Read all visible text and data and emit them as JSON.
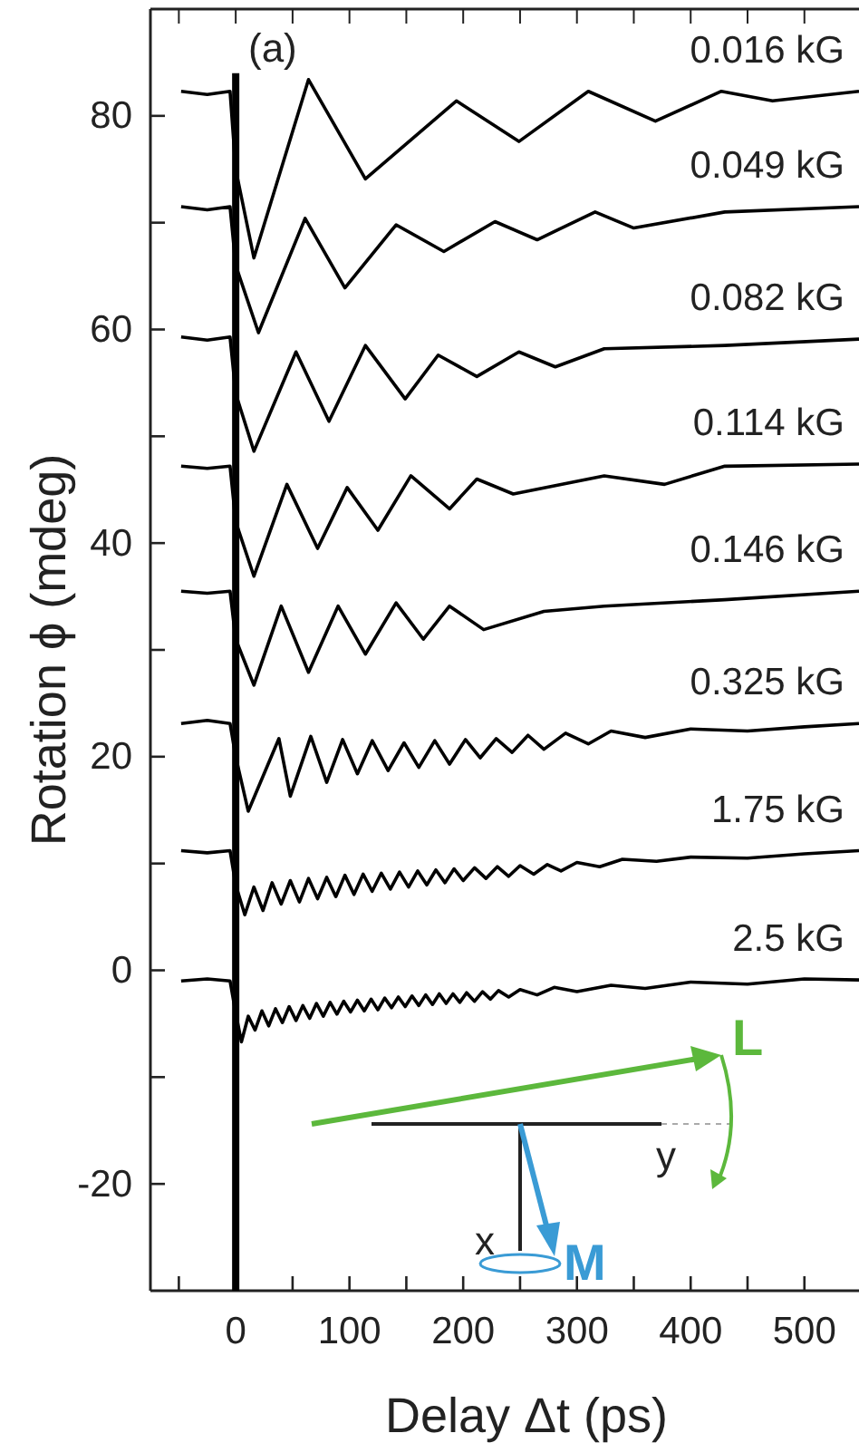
{
  "chart_data": {
    "type": "line",
    "xlabel": "Delay Δt (ps)",
    "ylabel": "Rotation ϕ (mdeg)",
    "xlim": [
      -75,
      548
    ],
    "ylim": [
      -30,
      90
    ],
    "xticks": [
      {
        "value": -50,
        "label": null
      },
      0,
      {
        "value": 50,
        "label": null
      },
      100,
      {
        "value": 150,
        "label": null
      },
      200,
      {
        "value": 250,
        "label": null
      },
      300,
      {
        "value": 350,
        "label": null
      },
      400,
      {
        "value": 450,
        "label": null
      },
      500
    ],
    "yticks": [
      -20,
      {
        "value": -10,
        "label": null
      },
      0,
      {
        "value": 10,
        "label": null
      },
      20,
      {
        "value": 30,
        "label": null
      },
      40,
      {
        "value": 50,
        "label": null
      },
      60,
      {
        "value": 70,
        "label": null
      },
      80
    ],
    "grid": false,
    "marker": "none",
    "line_style": "solid",
    "ref_lines": [
      {
        "axis": "x",
        "value": 0,
        "color": "#000000"
      }
    ],
    "annotations": [
      "(a)",
      "L",
      "y",
      "x",
      "M"
    ],
    "series": [
      {
        "name": "0.016 kG",
        "color": "#000000",
        "x": [
          -48,
          -25,
          -5,
          0,
          16,
          64,
          114,
          194,
          249,
          310,
          369,
          427,
          472,
          548
        ],
        "values": [
          82.3,
          82.0,
          82.3,
          75,
          66.7,
          83.4,
          74.1,
          81.4,
          77.6,
          82.3,
          79.5,
          82.3,
          81.4,
          82.3
        ]
      },
      {
        "name": "0.049 kG",
        "color": "#000000",
        "x": [
          -48,
          -25,
          -5,
          0,
          20,
          61,
          96,
          141,
          183,
          228,
          265,
          316,
          350,
          430,
          548
        ],
        "values": [
          71.5,
          71.2,
          71.5,
          66,
          59.7,
          70.4,
          63.9,
          69.8,
          67.3,
          70.1,
          68.4,
          71.0,
          69.5,
          71.0,
          71.5
        ]
      },
      {
        "name": "0.082 kG",
        "color": "#000000",
        "x": [
          -48,
          -25,
          -5,
          0,
          16,
          53,
          82,
          114,
          149,
          178,
          212,
          249,
          281,
          324,
          430,
          548
        ],
        "values": [
          59.3,
          59.0,
          59.3,
          54,
          48.6,
          57.9,
          51.4,
          58.5,
          53.5,
          57.6,
          55.6,
          57.9,
          56.5,
          58.2,
          58.5,
          59.1
        ]
      },
      {
        "name": "0.114 kG",
        "color": "#000000",
        "x": [
          -48,
          -25,
          -5,
          0,
          16,
          45,
          72,
          98,
          125,
          154,
          188,
          212,
          244,
          324,
          377,
          430,
          548
        ],
        "values": [
          47.2,
          47.0,
          47.2,
          42,
          36.9,
          45.5,
          39.5,
          45.2,
          41.2,
          46.3,
          43.2,
          46.0,
          44.6,
          46.3,
          45.5,
          47.2,
          47.4
        ]
      },
      {
        "name": "0.146 kG",
        "color": "#000000",
        "x": [
          -48,
          -25,
          -5,
          0,
          16,
          40,
          64,
          90,
          114,
          141,
          165,
          188,
          218,
          271,
          324,
          430,
          548
        ],
        "values": [
          35.5,
          35.3,
          35.5,
          31,
          26.7,
          34.1,
          27.9,
          34.1,
          29.6,
          34.4,
          31.0,
          34.1,
          31.9,
          33.6,
          34.1,
          34.7,
          35.5
        ]
      },
      {
        "name": "0.325 kG",
        "color": "#000000",
        "x": [
          -48,
          -25,
          -5,
          0,
          11,
          38,
          48,
          66,
          80,
          94,
          107,
          120,
          134,
          148,
          161,
          175,
          188,
          202,
          215,
          229,
          243,
          257,
          271,
          290,
          310,
          330,
          360,
          400,
          450,
          500,
          548
        ],
        "values": [
          23.1,
          23.4,
          23.1,
          20,
          14.9,
          21.7,
          16.3,
          21.9,
          17.6,
          21.6,
          18.4,
          21.5,
          18.7,
          21.3,
          19.0,
          21.5,
          19.3,
          21.6,
          19.9,
          21.7,
          20.4,
          22.0,
          20.7,
          22.2,
          21.2,
          22.4,
          21.8,
          22.6,
          22.4,
          22.8,
          23.1
        ]
      },
      {
        "name": "1.75 kG",
        "color": "#000000",
        "x": [
          -48,
          -25,
          -5,
          0,
          8,
          16,
          24,
          32,
          40,
          48,
          56,
          64,
          72,
          80,
          88,
          96,
          104,
          112,
          120,
          128,
          136,
          144,
          152,
          160,
          168,
          176,
          184,
          192,
          200,
          210,
          220,
          230,
          240,
          250,
          262,
          274,
          286,
          300,
          320,
          340,
          370,
          400,
          450,
          500,
          548
        ],
        "values": [
          11.2,
          11.0,
          11.2,
          8,
          5.2,
          7.8,
          5.6,
          8.2,
          6.2,
          8.4,
          6.4,
          8.6,
          6.7,
          8.7,
          6.9,
          8.9,
          7.1,
          9.0,
          7.4,
          9.1,
          7.6,
          9.2,
          7.8,
          9.3,
          8.0,
          9.4,
          8.2,
          9.5,
          8.4,
          9.6,
          8.6,
          9.7,
          8.8,
          9.8,
          9.0,
          9.9,
          9.3,
          10.1,
          9.7,
          10.4,
          10.2,
          10.6,
          10.5,
          10.9,
          11.2
        ]
      },
      {
        "name": "2.5 kG",
        "color": "#000000",
        "x": [
          -48,
          -25,
          -5,
          0,
          5,
          11,
          17,
          23,
          29,
          35,
          41,
          47,
          53,
          59,
          65,
          71,
          77,
          83,
          89,
          95,
          101,
          107,
          113,
          119,
          125,
          131,
          137,
          143,
          149,
          155,
          161,
          167,
          173,
          179,
          185,
          191,
          197,
          203,
          210,
          217,
          224,
          231,
          240,
          250,
          265,
          280,
          300,
          330,
          360,
          400,
          450,
          500,
          548
        ],
        "values": [
          -1.0,
          -0.8,
          -1.0,
          -4,
          -6.7,
          -4.3,
          -5.6,
          -3.8,
          -5.2,
          -3.6,
          -4.9,
          -3.4,
          -4.7,
          -3.3,
          -4.5,
          -3.1,
          -4.3,
          -3.0,
          -4.1,
          -2.9,
          -3.9,
          -2.8,
          -3.8,
          -2.7,
          -3.7,
          -2.6,
          -3.5,
          -2.5,
          -3.4,
          -2.4,
          -3.3,
          -2.3,
          -3.2,
          -2.2,
          -3.1,
          -2.2,
          -3.0,
          -2.1,
          -2.9,
          -2.0,
          -2.7,
          -1.9,
          -2.5,
          -1.8,
          -2.3,
          -1.6,
          -2.0,
          -1.4,
          -1.7,
          -1.1,
          -1.3,
          -0.8,
          -0.9
        ]
      }
    ]
  }
}
